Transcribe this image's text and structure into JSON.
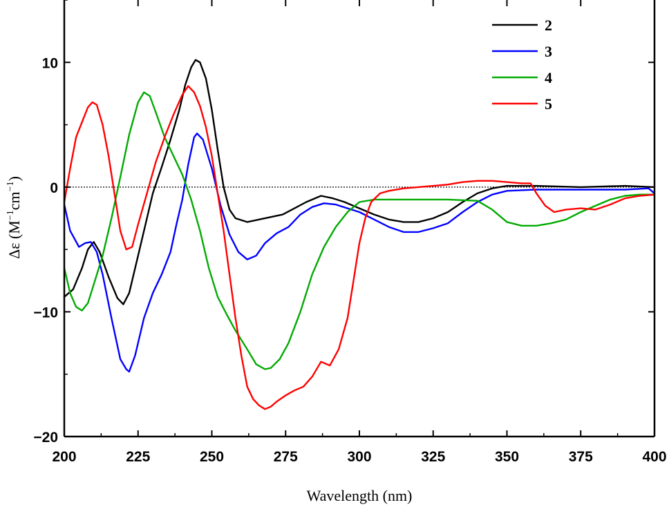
{
  "chart_data": {
    "type": "line",
    "xlabel": "Wavelength (nm)",
    "ylabel": {
      "base": "Δε (M",
      "sup1": "−1",
      "mid": "cm",
      "sup2": "−1",
      "end": ")"
    },
    "xlim": [
      200,
      400
    ],
    "ylim": [
      -20,
      15
    ],
    "x_ticks": [
      200,
      225,
      250,
      275,
      300,
      325,
      350,
      375,
      400
    ],
    "y_ticks": [
      -20,
      -10,
      0,
      10
    ],
    "y_tick_labels": [
      "−20",
      "−10",
      "0",
      "10"
    ],
    "zero_line": true,
    "grid": false,
    "legend_position": "top-right",
    "series": [
      {
        "name": "2",
        "color": "#000000",
        "points": [
          [
            200,
            -8.8
          ],
          [
            203,
            -8.2
          ],
          [
            206,
            -6.5
          ],
          [
            208,
            -5.0
          ],
          [
            210,
            -4.4
          ],
          [
            212,
            -5.2
          ],
          [
            215,
            -7.2
          ],
          [
            218,
            -8.9
          ],
          [
            220,
            -9.4
          ],
          [
            222,
            -8.5
          ],
          [
            225,
            -5.5
          ],
          [
            228,
            -2.5
          ],
          [
            230,
            -0.5
          ],
          [
            233,
            1.6
          ],
          [
            236,
            3.8
          ],
          [
            239,
            6.2
          ],
          [
            241,
            8.2
          ],
          [
            243,
            9.6
          ],
          [
            244.5,
            10.2
          ],
          [
            246,
            10.0
          ],
          [
            248,
            8.7
          ],
          [
            250,
            6.2
          ],
          [
            252,
            3.0
          ],
          [
            254,
            0.0
          ],
          [
            256,
            -1.8
          ],
          [
            258,
            -2.5
          ],
          [
            262,
            -2.8
          ],
          [
            266,
            -2.6
          ],
          [
            270,
            -2.4
          ],
          [
            274,
            -2.2
          ],
          [
            278,
            -1.7
          ],
          [
            282,
            -1.2
          ],
          [
            287,
            -0.7
          ],
          [
            291,
            -0.9
          ],
          [
            295,
            -1.2
          ],
          [
            300,
            -1.7
          ],
          [
            305,
            -2.2
          ],
          [
            310,
            -2.6
          ],
          [
            315,
            -2.8
          ],
          [
            320,
            -2.8
          ],
          [
            325,
            -2.5
          ],
          [
            330,
            -2.0
          ],
          [
            335,
            -1.2
          ],
          [
            340,
            -0.5
          ],
          [
            345,
            -0.1
          ],
          [
            350,
            0.1
          ],
          [
            360,
            0.1
          ],
          [
            375,
            0.0
          ],
          [
            390,
            0.1
          ],
          [
            400,
            0.0
          ]
        ]
      },
      {
        "name": "3",
        "color": "#0000ff",
        "points": [
          [
            200,
            -1.4
          ],
          [
            202,
            -3.5
          ],
          [
            205,
            -4.8
          ],
          [
            207,
            -4.5
          ],
          [
            209,
            -4.4
          ],
          [
            211,
            -5.2
          ],
          [
            213,
            -7.0
          ],
          [
            216,
            -10.5
          ],
          [
            219,
            -13.8
          ],
          [
            221,
            -14.6
          ],
          [
            222,
            -14.8
          ],
          [
            224,
            -13.5
          ],
          [
            227,
            -10.5
          ],
          [
            230,
            -8.5
          ],
          [
            233,
            -7.0
          ],
          [
            236,
            -5.2
          ],
          [
            238,
            -3.0
          ],
          [
            240,
            -1.0
          ],
          [
            242,
            1.8
          ],
          [
            244,
            4.0
          ],
          [
            245,
            4.3
          ],
          [
            247,
            3.8
          ],
          [
            250,
            1.5
          ],
          [
            253,
            -1.5
          ],
          [
            256,
            -3.8
          ],
          [
            259,
            -5.2
          ],
          [
            262,
            -5.8
          ],
          [
            265,
            -5.5
          ],
          [
            268,
            -4.5
          ],
          [
            272,
            -3.7
          ],
          [
            276,
            -3.2
          ],
          [
            280,
            -2.2
          ],
          [
            284,
            -1.6
          ],
          [
            288,
            -1.3
          ],
          [
            292,
            -1.4
          ],
          [
            296,
            -1.7
          ],
          [
            300,
            -2.0
          ],
          [
            305,
            -2.6
          ],
          [
            310,
            -3.2
          ],
          [
            315,
            -3.6
          ],
          [
            320,
            -3.6
          ],
          [
            325,
            -3.3
          ],
          [
            330,
            -2.9
          ],
          [
            335,
            -2.0
          ],
          [
            340,
            -1.2
          ],
          [
            345,
            -0.6
          ],
          [
            350,
            -0.3
          ],
          [
            360,
            -0.2
          ],
          [
            375,
            -0.2
          ],
          [
            390,
            -0.2
          ],
          [
            398,
            -0.1
          ],
          [
            400,
            -0.5
          ]
        ]
      },
      {
        "name": "4",
        "color": "#00aa00",
        "points": [
          [
            200,
            -6.5
          ],
          [
            202,
            -8.5
          ],
          [
            204,
            -9.6
          ],
          [
            206,
            -9.9
          ],
          [
            208,
            -9.3
          ],
          [
            210,
            -7.8
          ],
          [
            213,
            -5.5
          ],
          [
            216,
            -2.5
          ],
          [
            219,
            0.8
          ],
          [
            222,
            4.2
          ],
          [
            225,
            6.8
          ],
          [
            227,
            7.6
          ],
          [
            229,
            7.3
          ],
          [
            231,
            6.0
          ],
          [
            234,
            4.0
          ],
          [
            237,
            2.5
          ],
          [
            240,
            1.0
          ],
          [
            243,
            -1.0
          ],
          [
            246,
            -3.5
          ],
          [
            249,
            -6.5
          ],
          [
            252,
            -8.8
          ],
          [
            255,
            -10.2
          ],
          [
            258,
            -11.5
          ],
          [
            262,
            -13.0
          ],
          [
            265,
            -14.2
          ],
          [
            268,
            -14.6
          ],
          [
            270,
            -14.5
          ],
          [
            273,
            -13.8
          ],
          [
            276,
            -12.5
          ],
          [
            280,
            -10.0
          ],
          [
            284,
            -7.0
          ],
          [
            288,
            -4.8
          ],
          [
            292,
            -3.2
          ],
          [
            296,
            -2.0
          ],
          [
            300,
            -1.2
          ],
          [
            305,
            -1.0
          ],
          [
            310,
            -1.0
          ],
          [
            320,
            -1.0
          ],
          [
            330,
            -1.0
          ],
          [
            340,
            -1.1
          ],
          [
            345,
            -1.8
          ],
          [
            350,
            -2.8
          ],
          [
            355,
            -3.1
          ],
          [
            360,
            -3.1
          ],
          [
            365,
            -2.9
          ],
          [
            370,
            -2.6
          ],
          [
            375,
            -2.0
          ],
          [
            380,
            -1.5
          ],
          [
            385,
            -1.0
          ],
          [
            390,
            -0.7
          ],
          [
            395,
            -0.6
          ],
          [
            400,
            -0.6
          ]
        ]
      },
      {
        "name": "5",
        "color": "#ff0000",
        "points": [
          [
            200,
            -1.2
          ],
          [
            202,
            1.5
          ],
          [
            204,
            4.0
          ],
          [
            206,
            5.2
          ],
          [
            208,
            6.4
          ],
          [
            209.5,
            6.8
          ],
          [
            211,
            6.6
          ],
          [
            213,
            5.0
          ],
          [
            215,
            2.5
          ],
          [
            217,
            -0.5
          ],
          [
            219,
            -3.5
          ],
          [
            221,
            -5.0
          ],
          [
            223,
            -4.8
          ],
          [
            225,
            -3.0
          ],
          [
            228,
            -0.5
          ],
          [
            231,
            2.0
          ],
          [
            234,
            4.0
          ],
          [
            237,
            5.8
          ],
          [
            240,
            7.4
          ],
          [
            242,
            8.1
          ],
          [
            244,
            7.6
          ],
          [
            246,
            6.5
          ],
          [
            248,
            4.8
          ],
          [
            250,
            2.5
          ],
          [
            252,
            -0.5
          ],
          [
            254,
            -3.5
          ],
          [
            256,
            -7.0
          ],
          [
            258,
            -10.5
          ],
          [
            260,
            -13.5
          ],
          [
            262,
            -16.0
          ],
          [
            264,
            -17.0
          ],
          [
            266,
            -17.5
          ],
          [
            268,
            -17.8
          ],
          [
            270,
            -17.6
          ],
          [
            272,
            -17.2
          ],
          [
            275,
            -16.7
          ],
          [
            278,
            -16.3
          ],
          [
            281,
            -16.0
          ],
          [
            284,
            -15.2
          ],
          [
            287,
            -14.0
          ],
          [
            290,
            -14.3
          ],
          [
            293,
            -13.0
          ],
          [
            296,
            -10.5
          ],
          [
            298,
            -7.5
          ],
          [
            300,
            -4.5
          ],
          [
            302,
            -2.5
          ],
          [
            304,
            -1.2
          ],
          [
            307,
            -0.5
          ],
          [
            310,
            -0.3
          ],
          [
            315,
            -0.1
          ],
          [
            320,
            0.0
          ],
          [
            325,
            0.1
          ],
          [
            330,
            0.2
          ],
          [
            335,
            0.4
          ],
          [
            340,
            0.5
          ],
          [
            345,
            0.5
          ],
          [
            350,
            0.4
          ],
          [
            355,
            0.3
          ],
          [
            358,
            0.3
          ],
          [
            360,
            -0.5
          ],
          [
            363,
            -1.5
          ],
          [
            366,
            -2.0
          ],
          [
            370,
            -1.8
          ],
          [
            375,
            -1.7
          ],
          [
            380,
            -1.8
          ],
          [
            385,
            -1.4
          ],
          [
            390,
            -0.9
          ],
          [
            395,
            -0.7
          ],
          [
            400,
            -0.6
          ]
        ]
      }
    ]
  }
}
